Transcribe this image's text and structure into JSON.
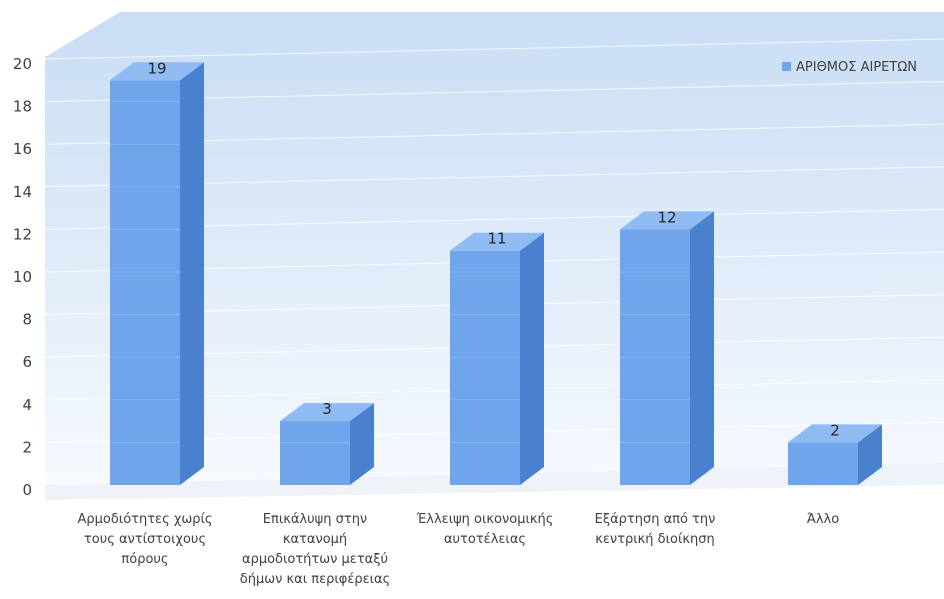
{
  "chart_data": {
    "type": "bar",
    "categories": [
      [
        "Αρμοδιότητες χωρίς",
        "τους αντίστοιχους",
        "πόρους"
      ],
      [
        "Επικάλυψη στην",
        "κατανομή",
        "αρμοδιοτήτων μεταξύ",
        "δήμων και περιφέρειας"
      ],
      [
        "Έλλειψη οικονομικής",
        "αυτοτέλειας"
      ],
      [
        "Εξάρτηση από την",
        "κεντρική διοίκηση"
      ],
      [
        "Άλλο"
      ]
    ],
    "series": [
      {
        "name": "ΑΡΙΘΜΟΣ ΑΙΡΕΤΩΝ",
        "values": [
          19,
          3,
          11,
          12,
          2
        ]
      }
    ],
    "yticks": [
      0,
      2,
      4,
      6,
      8,
      10,
      12,
      14,
      16,
      18,
      20
    ],
    "ylim": [
      0,
      20
    ],
    "grid": true,
    "legend": "top-right",
    "data_labels": true
  },
  "colors": {
    "bar_front": "#6FA5EB",
    "bar_side": "#4A81CF",
    "bar_top": "#8FBAF2",
    "legend_swatch": "#6FA5EB"
  }
}
